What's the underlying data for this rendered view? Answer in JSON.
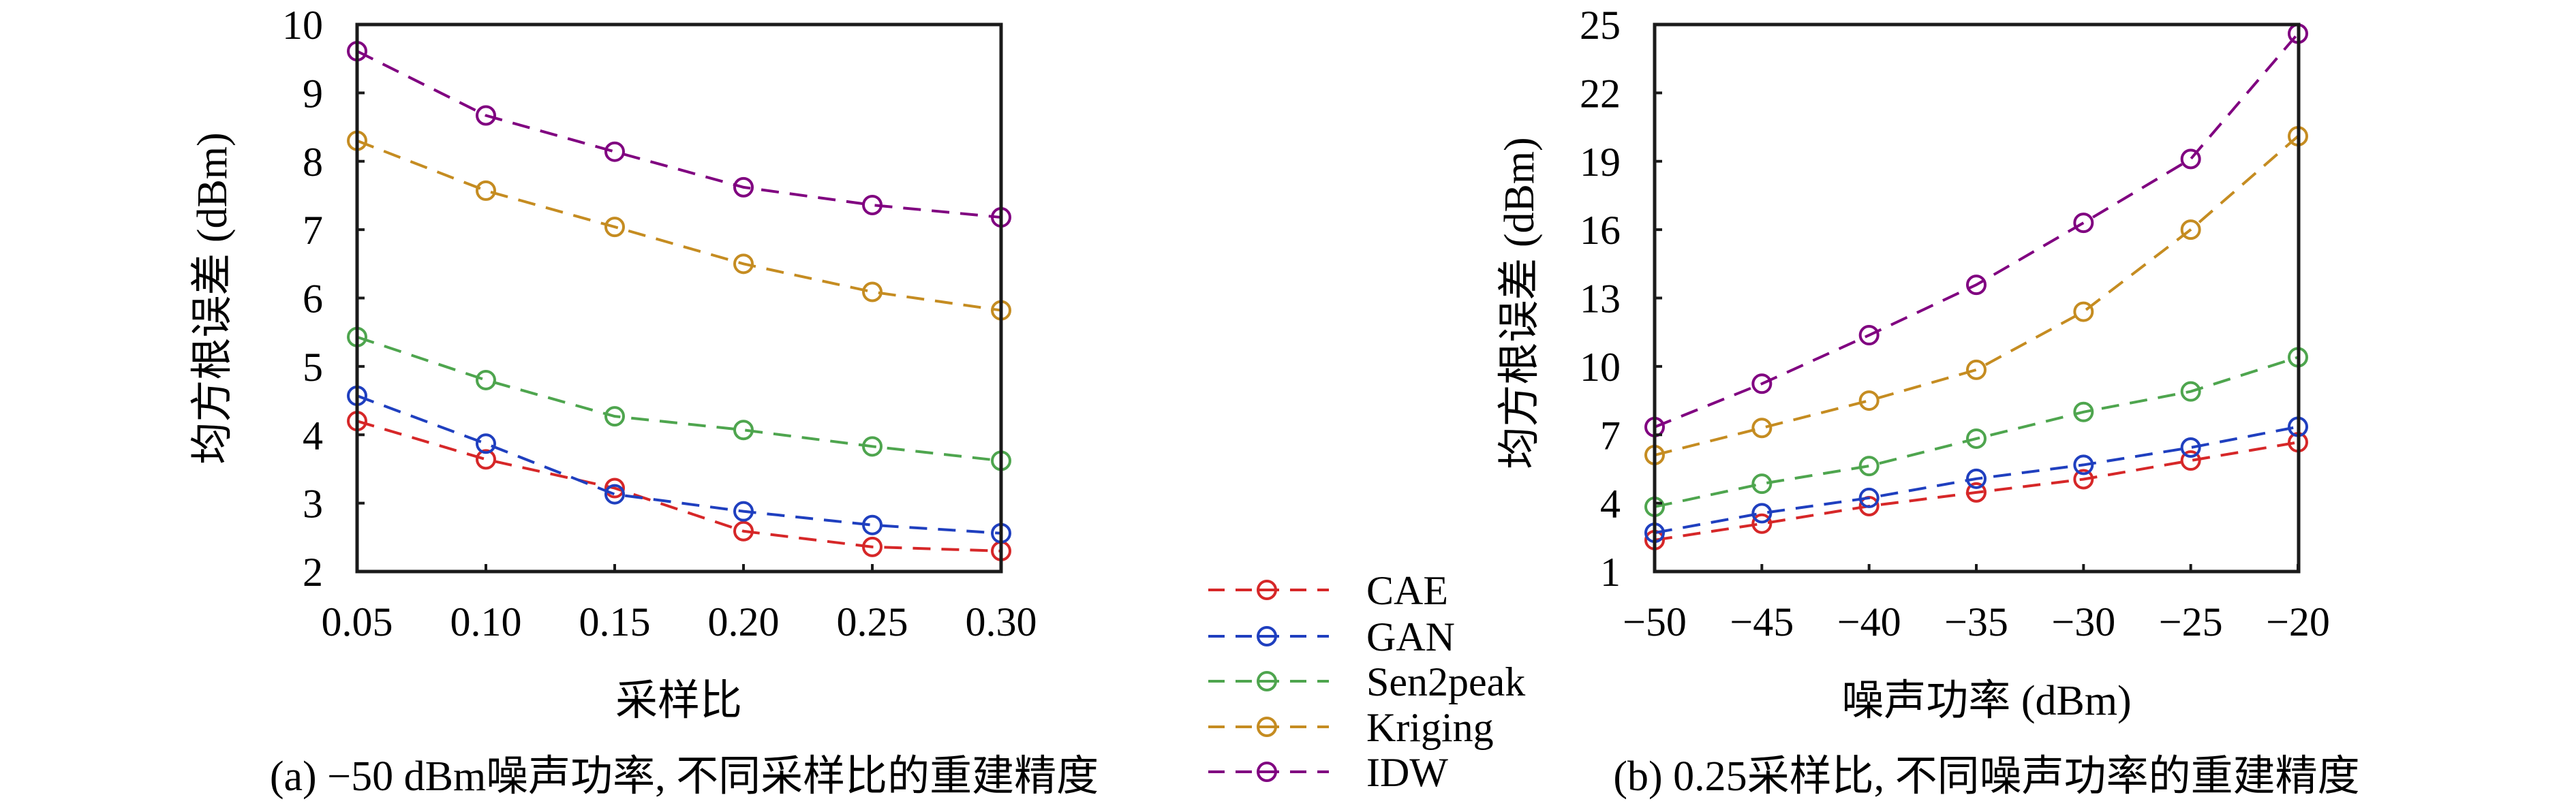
{
  "legend": {
    "placement": "center-bottom",
    "items": [
      {
        "name": "CAE",
        "color": "#d62728"
      },
      {
        "name": "GAN",
        "color": "#1f3fbf"
      },
      {
        "name": "Sen2peak",
        "color": "#4ea54e"
      },
      {
        "name": "Kriging",
        "color": "#c58c21"
      },
      {
        "name": "IDW",
        "color": "#800080"
      }
    ]
  },
  "chart_data": [
    {
      "type": "line",
      "panel": "a",
      "caption": "(a) −50 dBm噪声功率, 不同采样比的重建精度",
      "xlabel": "采样比",
      "ylabel": "均方根误差 (dBm)",
      "x": [
        0.05,
        0.1,
        0.15,
        0.2,
        0.25,
        0.3
      ],
      "x_tick_labels": [
        "0.05",
        "0.10",
        "0.15",
        "0.20",
        "0.25",
        "0.30"
      ],
      "xlim": [
        0.05,
        0.3
      ],
      "ylim": [
        2,
        10
      ],
      "y_ticks": [
        2,
        3,
        4,
        5,
        6,
        7,
        8,
        9,
        10
      ],
      "y_tick_labels": [
        "2",
        "3",
        "4",
        "5",
        "6",
        "7",
        "8",
        "9",
        "10"
      ],
      "grid": false,
      "series": [
        {
          "name": "CAE",
          "values": [
            4.2,
            3.64,
            3.22,
            2.59,
            2.36,
            2.3
          ]
        },
        {
          "name": "GAN",
          "values": [
            4.57,
            3.87,
            3.13,
            2.88,
            2.68,
            2.56
          ]
        },
        {
          "name": "Sen2peak",
          "values": [
            5.43,
            4.8,
            4.27,
            4.07,
            3.83,
            3.62
          ]
        },
        {
          "name": "Kriging",
          "values": [
            8.3,
            7.57,
            7.04,
            6.5,
            6.09,
            5.82
          ]
        },
        {
          "name": "IDW",
          "values": [
            9.61,
            8.67,
            8.14,
            7.62,
            7.36,
            7.18
          ]
        }
      ]
    },
    {
      "type": "line",
      "panel": "b",
      "caption": "(b) 0.25采样比, 不同噪声功率的重建精度",
      "xlabel": "噪声功率 (dBm)",
      "ylabel": "均方根误差 (dBm)",
      "x": [
        -50,
        -45,
        -40,
        -35,
        -30,
        -25,
        -20
      ],
      "x_tick_labels": [
        "−50",
        "−45",
        "−40",
        "−35",
        "−30",
        "−25",
        "−20"
      ],
      "xlim": [
        -50,
        -20
      ],
      "ylim": [
        1,
        25
      ],
      "y_ticks": [
        1,
        4,
        7,
        10,
        13,
        16,
        19,
        22,
        25
      ],
      "y_tick_labels": [
        "1",
        "4",
        "7",
        "10",
        "13",
        "16",
        "19",
        "22",
        "25"
      ],
      "grid": false,
      "series": [
        {
          "name": "CAE",
          "values": [
            2.38,
            3.1,
            3.87,
            4.47,
            5.05,
            5.87,
            6.67
          ]
        },
        {
          "name": "GAN",
          "values": [
            2.7,
            3.56,
            4.23,
            5.07,
            5.68,
            6.44,
            7.35
          ]
        },
        {
          "name": "Sen2peak",
          "values": [
            3.84,
            4.85,
            5.63,
            6.83,
            8.0,
            8.9,
            10.4
          ]
        },
        {
          "name": "Kriging",
          "values": [
            6.11,
            7.3,
            8.5,
            9.85,
            12.4,
            16.0,
            20.1
          ]
        },
        {
          "name": "IDW",
          "values": [
            7.34,
            9.24,
            11.37,
            13.58,
            16.3,
            19.1,
            24.6
          ]
        }
      ]
    }
  ]
}
